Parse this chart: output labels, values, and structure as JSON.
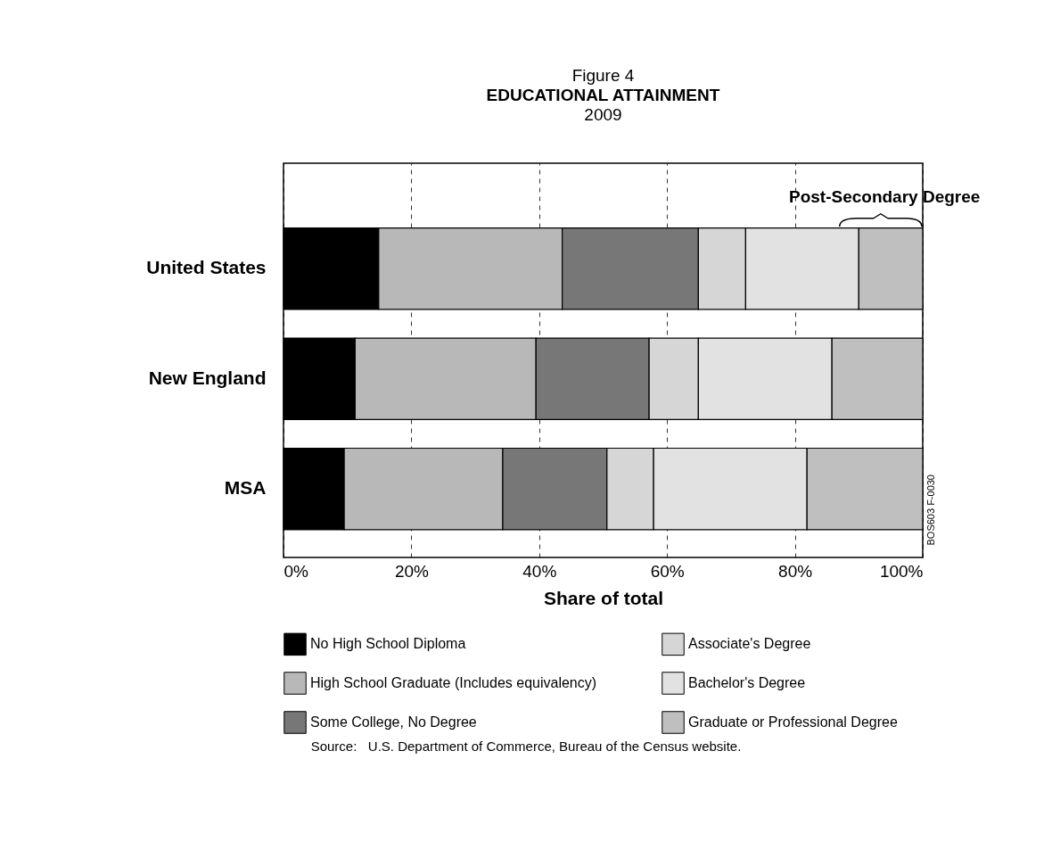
{
  "chart_data": {
    "type": "bar",
    "orientation": "horizontal",
    "stacked": true,
    "title": "EDUCATIONAL ATTAINMENT",
    "subtitle": "2009",
    "xlabel": "Share of total",
    "categories": [
      "United States",
      "New England",
      "MSA"
    ],
    "series": [
      {
        "name": "No High School Diploma",
        "color": "#000000",
        "values": [
          14.9,
          11.2,
          9.5
        ]
      },
      {
        "name": "High School Graduate (Includes equivalency)",
        "color": "#b8b8b8",
        "values": [
          28.7,
          28.3,
          24.8
        ]
      },
      {
        "name": "Some College, No Degree",
        "color": "#777777",
        "values": [
          21.3,
          17.7,
          16.3
        ]
      },
      {
        "name": "Associate's Degree",
        "color": "#d6d6d6",
        "values": [
          7.4,
          7.7,
          7.3
        ]
      },
      {
        "name": "Bachelor's Degree",
        "color": "#e2e2e2",
        "values": [
          17.7,
          20.9,
          24.0
        ]
      },
      {
        "name": "Graduate or Professional Degree",
        "color": "#bfbfbf",
        "values": [
          10.0,
          14.2,
          18.1
        ]
      }
    ],
    "xlim": [
      0,
      100
    ],
    "xticks": [
      {
        "value": 0,
        "label": "0%"
      },
      {
        "value": 20,
        "label": "20%"
      },
      {
        "value": 40,
        "label": "40%"
      },
      {
        "value": 60,
        "label": "60%"
      },
      {
        "value": 80,
        "label": "80%"
      },
      {
        "value": 100,
        "label": "100%"
      }
    ],
    "grid": "x",
    "legend": "bottom",
    "annotations": [
      "Figure 4",
      "Post-Secondary Degree",
      "BOS603 F-0030",
      "Source:   U.S. Department of Commerce, Bureau of the Census website."
    ]
  }
}
